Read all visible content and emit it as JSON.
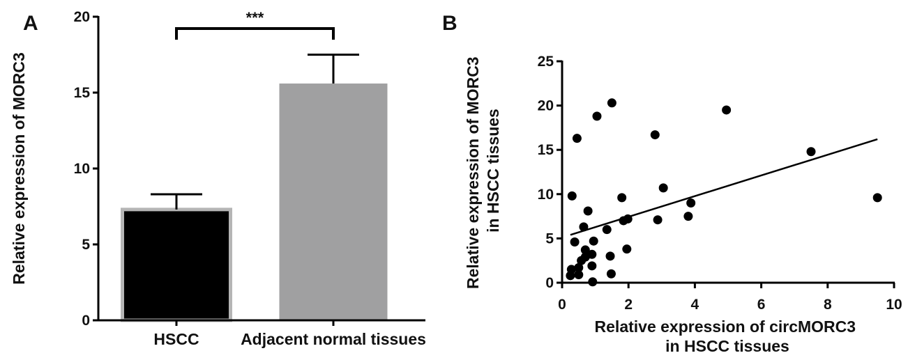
{
  "chart_data": [
    {
      "panel": "A",
      "type": "bar",
      "categories": [
        "HSCC",
        "Adjacent normal tissues"
      ],
      "values": [
        7.3,
        15.6
      ],
      "errors": [
        1.0,
        1.9
      ],
      "colors": [
        "#000000",
        "#a0a0a1"
      ],
      "ylabel": "Relative expression of MORC3",
      "ylim": [
        0,
        20
      ],
      "yticks": [
        "0",
        "5",
        "10",
        "15",
        "20"
      ],
      "significance": "***",
      "grid": false
    },
    {
      "panel": "B",
      "type": "scatter",
      "xlabel": [
        "Relative expression of circMORC3",
        "in HSCC tissues"
      ],
      "ylabel": [
        "Relative expression of MORC3",
        "in HSCC tissues"
      ],
      "xlim": [
        0,
        10
      ],
      "ylim": [
        0,
        25
      ],
      "xticks": [
        "0",
        "2",
        "4",
        "6",
        "8",
        "10"
      ],
      "yticks": [
        "0",
        "5",
        "10",
        "15",
        "20",
        "25"
      ],
      "points": [
        [
          0.25,
          0.8
        ],
        [
          0.28,
          1.5
        ],
        [
          0.3,
          9.8
        ],
        [
          0.38,
          4.6
        ],
        [
          0.45,
          16.3
        ],
        [
          0.5,
          0.9
        ],
        [
          0.5,
          1.7
        ],
        [
          0.58,
          2.5
        ],
        [
          0.65,
          6.3
        ],
        [
          0.7,
          3.7
        ],
        [
          0.7,
          2.9
        ],
        [
          0.78,
          8.1
        ],
        [
          0.9,
          3.2
        ],
        [
          0.9,
          1.9
        ],
        [
          0.92,
          0.1
        ],
        [
          0.95,
          4.7
        ],
        [
          1.05,
          18.8
        ],
        [
          1.35,
          6.0
        ],
        [
          1.45,
          3.0
        ],
        [
          1.48,
          1.0
        ],
        [
          1.5,
          20.3
        ],
        [
          1.8,
          9.6
        ],
        [
          1.85,
          7.0
        ],
        [
          1.95,
          3.8
        ],
        [
          1.98,
          7.2
        ],
        [
          2.8,
          16.7
        ],
        [
          2.88,
          7.1
        ],
        [
          3.05,
          10.7
        ],
        [
          3.8,
          7.5
        ],
        [
          3.88,
          9.0
        ],
        [
          4.95,
          19.5
        ],
        [
          7.5,
          14.8
        ],
        [
          9.5,
          9.6
        ]
      ],
      "fit_line": {
        "x": [
          0.25,
          9.5
        ],
        "y": [
          5.4,
          16.2
        ]
      },
      "grid": false
    }
  ],
  "panel_labels": {
    "a": "A",
    "b": "B"
  }
}
